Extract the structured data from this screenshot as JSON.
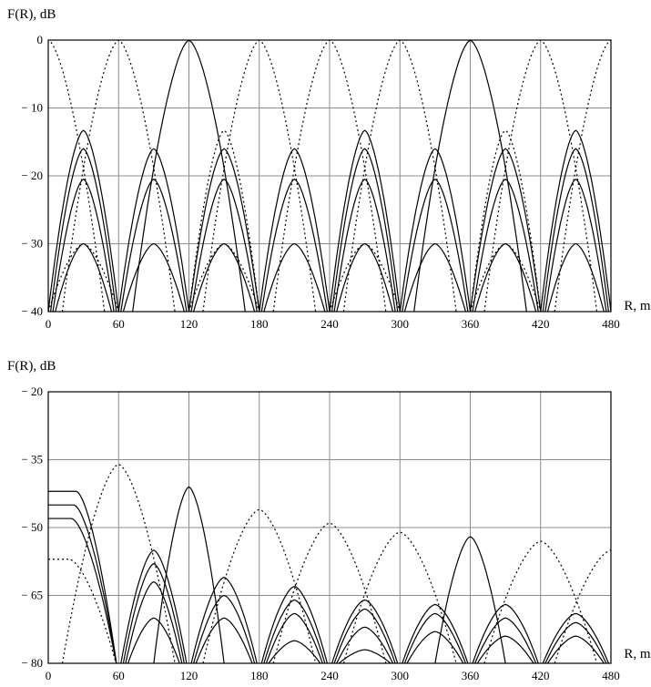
{
  "chart_data": [
    {
      "type": "line",
      "ylabel": "F(R), dB",
      "xlabel": "R, m",
      "xlim": [
        0,
        480
      ],
      "ylim": [
        -40,
        0
      ],
      "xticks": [
        "0",
        "60",
        "120",
        "180",
        "240",
        "300",
        "360",
        "420",
        "480"
      ],
      "yticks": [
        "0",
        "− 10",
        "− 20",
        "− 30",
        "− 40"
      ],
      "grid": true,
      "series_solid_main_peaks": [
        120,
        360
      ],
      "series_dotted_main_peaks": [
        0,
        60,
        180,
        240,
        300,
        420,
        480
      ],
      "solid_side_peaks": [
        {
          "center": 30,
          "levels": [
            -13.3,
            -16,
            -20.5,
            -30
          ]
        },
        {
          "center": 90,
          "levels": [
            -16,
            -20.5,
            -30
          ]
        },
        {
          "center": 150,
          "levels": [
            -16,
            -20.5,
            -30
          ]
        },
        {
          "center": 210,
          "levels": [
            -16,
            -20.5,
            -30
          ]
        },
        {
          "center": 270,
          "levels": [
            -13.3,
            -16,
            -20.5,
            -30
          ]
        },
        {
          "center": 330,
          "levels": [
            -16,
            -20.5,
            -30
          ]
        },
        {
          "center": 390,
          "levels": [
            -16,
            -20.5,
            -30
          ]
        },
        {
          "center": 450,
          "levels": [
            -13.3,
            -16,
            -20.5,
            -30
          ]
        }
      ],
      "dotted_side_peaks": [
        {
          "center": 30,
          "levels": [
            -30
          ]
        },
        {
          "center": 150,
          "levels": [
            -13.3,
            -30
          ]
        },
        {
          "center": 270,
          "levels": [
            -30
          ]
        },
        {
          "center": 390,
          "levels": [
            -13.3,
            -30
          ]
        }
      ]
    },
    {
      "type": "line",
      "ylabel": "F(R), dB",
      "xlabel": "R, m",
      "xlim": [
        0,
        480
      ],
      "ylim": [
        -80,
        -20
      ],
      "xticks": [
        "0",
        "60",
        "120",
        "180",
        "240",
        "300",
        "360",
        "420",
        "480"
      ],
      "yticks": [
        "− 20",
        "− 35",
        "− 50",
        "− 65",
        "− 80"
      ],
      "grid": true,
      "solid_main_peaks": [
        {
          "center": 120,
          "level": -41
        },
        {
          "center": 360,
          "level": -52
        }
      ],
      "dotted_main_peaks": [
        {
          "center": 60,
          "level": -36
        },
        {
          "center": 180,
          "level": -46
        },
        {
          "center": 240,
          "level": -49
        },
        {
          "center": 300,
          "level": -51
        },
        {
          "center": 420,
          "level": -53
        },
        {
          "center": 480,
          "level": -55
        }
      ],
      "start_plateaus": [
        -42,
        -45,
        -48,
        -57
      ],
      "solid_side_peaks": [
        {
          "center": 90,
          "levels": [
            -55,
            -58,
            -62,
            -70
          ]
        },
        {
          "center": 150,
          "levels": [
            -61,
            -65,
            -70
          ]
        },
        {
          "center": 210,
          "levels": [
            -63,
            -66,
            -69,
            -75
          ]
        },
        {
          "center": 270,
          "levels": [
            -66,
            -68,
            -72,
            -77
          ]
        },
        {
          "center": 330,
          "levels": [
            -67,
            -69,
            -73
          ]
        },
        {
          "center": 390,
          "levels": [
            -67,
            -70,
            -74
          ]
        },
        {
          "center": 450,
          "levels": [
            -69,
            -71,
            -74
          ]
        }
      ]
    }
  ]
}
